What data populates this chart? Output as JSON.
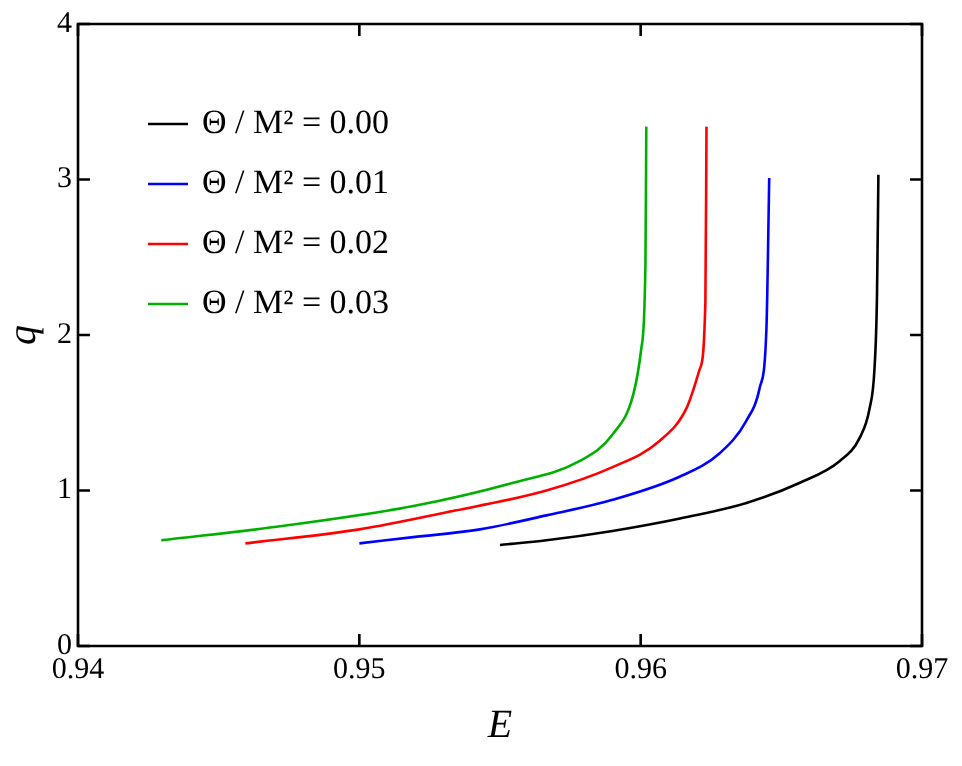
{
  "chart_data": {
    "type": "line",
    "xlabel": "E",
    "ylabel": "q",
    "xlim": [
      0.94,
      0.97
    ],
    "ylim": [
      0,
      4
    ],
    "xticks": [
      0.94,
      0.95,
      0.96,
      0.97
    ],
    "yticks": [
      0,
      1,
      2,
      3,
      4
    ],
    "grid": false,
    "legend": "top left",
    "marker": "none",
    "line_style": "solid",
    "series": [
      {
        "name": "Θ / M² = 0.00",
        "color": "#000000",
        "x": [
          0.955,
          0.95665,
          0.959,
          0.9614,
          0.96376,
          0.96566,
          0.96708,
          0.96779,
          0.96814,
          0.96831,
          0.9684,
          0.96845
        ],
        "values": [
          0.65,
          0.68,
          0.74,
          0.82,
          0.92,
          1.05,
          1.19,
          1.34,
          1.53,
          1.78,
          2.25,
          3.03
        ]
      },
      {
        "name": "Θ / M² = 0.01",
        "color": "#0000ff",
        "x": [
          0.95,
          0.95192,
          0.95429,
          0.95665,
          0.959,
          0.9614,
          0.96281,
          0.96376,
          0.96423,
          0.96447,
          0.96457
        ],
        "values": [
          0.66,
          0.7,
          0.75,
          0.84,
          0.94,
          1.09,
          1.24,
          1.45,
          1.66,
          2.04,
          3.01
        ]
      },
      {
        "name": "Θ / M² = 0.02",
        "color": "#ff0000",
        "x": [
          0.94595,
          0.95,
          0.9531,
          0.95665,
          0.959,
          0.96068,
          0.96163,
          0.9621,
          0.9623,
          0.96234
        ],
        "values": [
          0.66,
          0.75,
          0.86,
          1.0,
          1.15,
          1.32,
          1.53,
          1.78,
          2.21,
          3.34
        ]
      },
      {
        "name": "Θ / M² = 0.03",
        "color": "#00b000",
        "x": [
          0.94296,
          0.94718,
          0.95192,
          0.95547,
          0.95784,
          0.959,
          0.95974,
          0.96002,
          0.96017,
          0.9602
        ],
        "values": [
          0.68,
          0.77,
          0.9,
          1.05,
          1.19,
          1.36,
          1.62,
          1.91,
          2.46,
          3.34
        ]
      }
    ]
  }
}
